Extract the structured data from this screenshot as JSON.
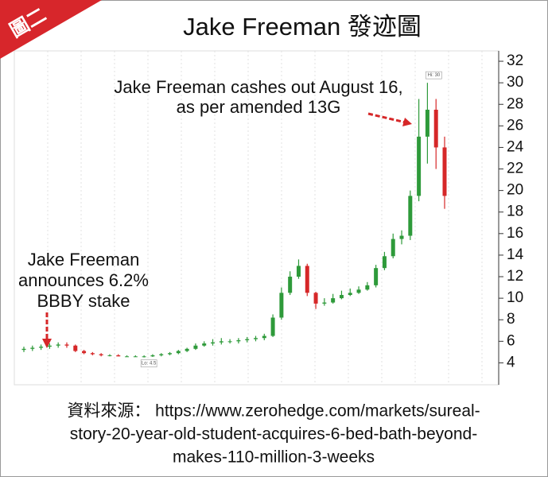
{
  "chart_data": {
    "type": "candlestick",
    "badge": "圖二",
    "title": "Jake Freeman 發迹圖",
    "open": [
      5.2,
      5.3,
      5.4,
      5.5,
      5.6,
      5.7,
      5.6,
      5.1,
      4.9,
      4.8,
      4.7,
      4.7,
      4.6,
      4.6,
      4.6,
      4.6,
      4.7,
      4.8,
      4.9,
      5.1,
      5.3,
      5.6,
      5.8,
      5.9,
      6.0,
      6.0,
      6.1,
      6.2,
      6.3,
      6.5,
      8.2,
      10.5,
      12.0,
      13.0,
      10.5,
      9.5,
      9.6,
      10.0,
      10.3,
      10.5,
      10.8,
      11.2,
      12.8,
      13.9,
      15.5,
      15.8,
      19.5,
      25.0,
      27.5,
      24.0
    ],
    "high": [
      5.5,
      5.6,
      5.7,
      5.8,
      5.9,
      5.9,
      5.7,
      5.2,
      5.0,
      4.9,
      4.8,
      4.8,
      4.7,
      4.7,
      4.7,
      4.8,
      4.9,
      5.0,
      5.2,
      5.4,
      5.8,
      6.0,
      6.2,
      6.3,
      6.2,
      6.3,
      6.4,
      6.5,
      6.7,
      8.5,
      11.0,
      12.5,
      13.6,
      13.2,
      10.6,
      10.0,
      10.4,
      10.7,
      10.9,
      11.1,
      11.5,
      13.1,
      14.3,
      16.0,
      16.3,
      20.0,
      28.5,
      30.0,
      28.5,
      25.0
    ],
    "low": [
      5.0,
      5.1,
      5.2,
      5.3,
      5.4,
      5.4,
      5.0,
      4.8,
      4.7,
      4.6,
      4.6,
      4.6,
      4.55,
      4.55,
      4.5,
      4.55,
      4.6,
      4.7,
      4.8,
      5.0,
      5.2,
      5.5,
      5.6,
      5.7,
      5.8,
      5.8,
      5.9,
      6.0,
      6.1,
      6.4,
      8.0,
      10.3,
      11.8,
      10.2,
      9.0,
      9.3,
      9.5,
      9.9,
      10.2,
      10.4,
      10.7,
      11.0,
      12.6,
      13.7,
      15.0,
      15.4,
      19.0,
      22.5,
      22.0,
      18.3
    ],
    "close": [
      5.3,
      5.4,
      5.5,
      5.6,
      5.7,
      5.6,
      5.1,
      4.9,
      4.8,
      4.7,
      4.7,
      4.6,
      4.6,
      4.6,
      4.6,
      4.7,
      4.8,
      4.9,
      5.1,
      5.3,
      5.6,
      5.8,
      5.9,
      6.0,
      6.0,
      6.1,
      6.2,
      6.3,
      6.5,
      8.2,
      10.5,
      12.0,
      13.0,
      10.5,
      9.5,
      9.6,
      10.0,
      10.3,
      10.5,
      10.8,
      11.2,
      12.8,
      13.9,
      15.5,
      15.8,
      19.5,
      25.0,
      27.5,
      24.0,
      19.5
    ],
    "up_color": "#2e9a3a",
    "down_color": "#d62728",
    "ylim": [
      2,
      33
    ],
    "yticks": [
      4,
      6,
      8,
      10,
      12,
      14,
      16,
      18,
      20,
      22,
      24,
      26,
      28,
      30,
      32
    ],
    "high_label": "Hi: 30",
    "low_label": "Lo: 4.5",
    "annotation_exit": [
      "Jake Freeman cashes out August 16,",
      "as per amended 13G"
    ],
    "annotation_entry": [
      "Jake Freeman",
      "announces 6.2%",
      "BBBY stake"
    ],
    "source": [
      "資料來源： https://www.zerohedge.com/markets/sureal-",
      "story-20-year-old-student-acquires-6-bed-bath-beyond-",
      "makes-110-million-3-weeks"
    ]
  }
}
